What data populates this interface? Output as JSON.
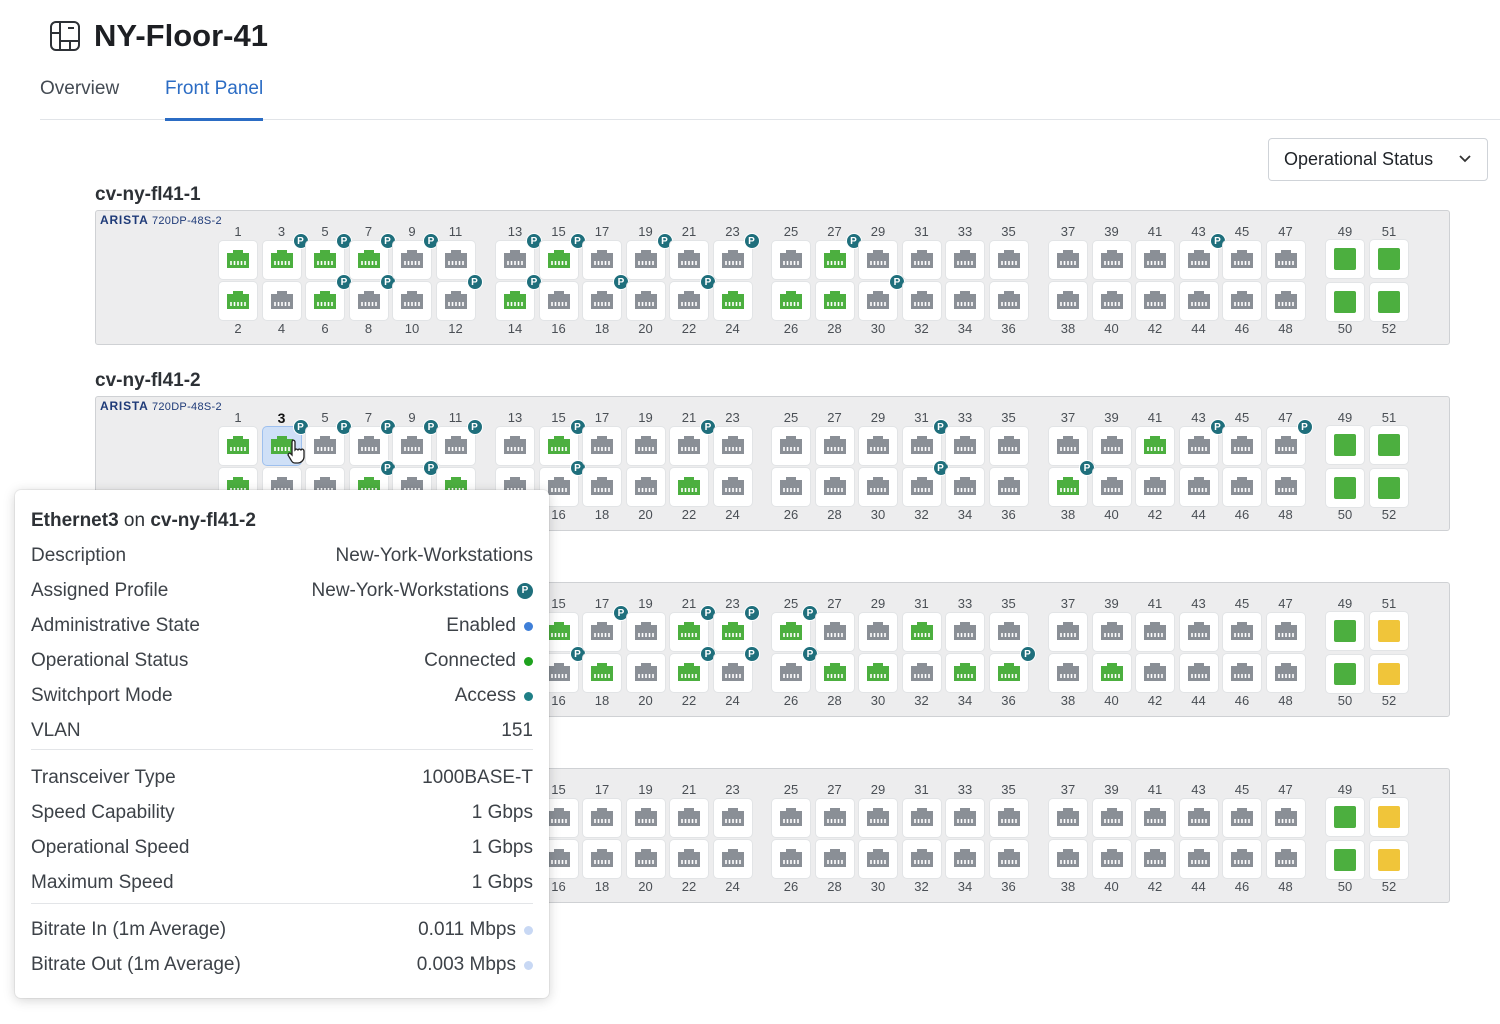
{
  "page": {
    "title": "NY-Floor-41",
    "icon": "layout-grid-icon"
  },
  "tabs": [
    {
      "label": "Overview",
      "active": false
    },
    {
      "label": "Front Panel",
      "active": true
    }
  ],
  "view_selector": {
    "value": "Operational Status"
  },
  "colors": {
    "connected": "#4caf3f",
    "inactive": "#8a8f96",
    "sfp_up": "#4caf3f",
    "sfp_warn": "#f0c53a",
    "profile_badge": "#1f6f7c",
    "accent": "#2b6cc4"
  },
  "switches": [
    {
      "name": "cv-ny-fl41-1",
      "brand": "ARISTA",
      "model": "720DP-48S-2",
      "ports_green": [
        1,
        3,
        5,
        7,
        14,
        15,
        24,
        26,
        27,
        28,
        2,
        6
      ],
      "ports_green_note": "",
      "ports_profile": [
        3,
        5,
        7,
        9,
        13,
        15,
        19,
        23,
        27,
        43,
        6,
        8,
        12,
        14,
        18,
        22,
        30
      ],
      "sfp": {
        "49": "up",
        "50": "up",
        "51": "up",
        "52": "up"
      }
    },
    {
      "name": "cv-ny-fl41-2",
      "brand": "ARISTA",
      "model": "720DP-48S-2",
      "ports_green": [
        1,
        3,
        15,
        41,
        2,
        8,
        12,
        22,
        38
      ],
      "ports_green_note": "",
      "ports_profile": [
        3,
        5,
        7,
        9,
        11,
        15,
        21,
        31,
        43,
        47,
        8,
        10,
        16,
        32,
        38
      ],
      "selected_port": 3,
      "sfp": {
        "49": "up",
        "50": "up",
        "51": "up",
        "52": "up"
      }
    },
    {
      "name": "",
      "brand": "",
      "model": "",
      "ports_green": [
        15,
        21,
        23,
        25,
        31,
        18,
        22,
        28,
        30,
        34,
        36,
        40
      ],
      "ports_green_note": "",
      "ports_profile": [
        17,
        21,
        23,
        25,
        16,
        22,
        24,
        26,
        36
      ],
      "sfp": {
        "49": "up",
        "50": "up",
        "51": "warn",
        "52": "warn"
      }
    },
    {
      "name": "",
      "brand": "",
      "model": "",
      "ports_green": [],
      "ports_green_note": "",
      "ports_profile": [],
      "sfp": {
        "49": "up",
        "50": "up",
        "51": "warn",
        "52": "warn"
      }
    }
  ],
  "tooltip": {
    "port": "Ethernet3",
    "on": "on",
    "device": "cv-ny-fl41-2",
    "rows": [
      {
        "key": "Description",
        "value": "New-York-Workstations"
      },
      {
        "key": "Assigned Profile",
        "value": "New-York-Workstations",
        "badge": "P"
      },
      {
        "key": "Administrative State",
        "value": "Enabled",
        "dot": "#3f7fd8"
      },
      {
        "key": "Operational Status",
        "value": "Connected",
        "dot": "#1ea21e"
      },
      {
        "key": "Switchport Mode",
        "value": "Access",
        "dot": "#1f7f86"
      },
      {
        "key": "VLAN",
        "value": "151"
      }
    ],
    "rows2": [
      {
        "key": "Transceiver Type",
        "value": "1000BASE-T"
      },
      {
        "key": "Speed Capability",
        "value": "1 Gbps"
      },
      {
        "key": "Operational Speed",
        "value": "1 Gbps"
      },
      {
        "key": "Maximum Speed",
        "value": "1 Gbps"
      }
    ],
    "rows3": [
      {
        "key": "Bitrate In (1m Average)",
        "value": "0.011 Mbps",
        "dot": "#c8d8f4"
      },
      {
        "key": "Bitrate Out (1m Average)",
        "value": "0.003 Mbps",
        "dot": "#c8d8f4"
      }
    ]
  }
}
